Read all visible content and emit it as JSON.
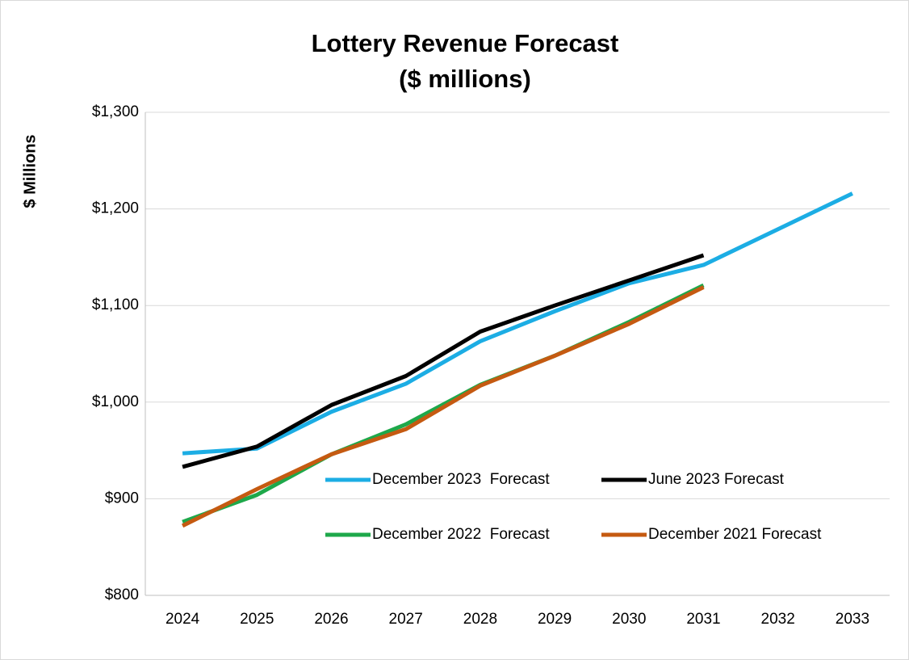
{
  "chart_data": {
    "type": "line",
    "title": "Lottery Revenue Forecast",
    "subtitle": "($ millions)",
    "y_label": "$ Millions",
    "categories": [
      "2024",
      "2025",
      "2026",
      "2027",
      "2028",
      "2029",
      "2030",
      "2031",
      "2032",
      "2033"
    ],
    "series": [
      {
        "name": "December 2023  Forecast",
        "color": "#1cade4",
        "values": [
          947,
          952,
          990,
          1019,
          1063,
          1094,
          1123,
          1142,
          1179,
          1216
        ]
      },
      {
        "name": "June 2023 Forecast",
        "color": "#000000",
        "values": [
          933,
          954,
          997,
          1027,
          1073,
          1100,
          1126,
          1152,
          null,
          null
        ]
      },
      {
        "name": "December 2022  Forecast",
        "color": "#1ea84a",
        "values": [
          876,
          904,
          946,
          977,
          1018,
          1048,
          1083,
          1121,
          null,
          null
        ]
      },
      {
        "name": "December 2021 Forecast",
        "color": "#c55a11",
        "values": [
          872,
          910,
          946,
          972,
          1017,
          1048,
          1081,
          1119,
          null,
          null
        ]
      }
    ],
    "ylim": [
      800,
      1300
    ],
    "yticks": [
      {
        "value": 800,
        "label": "$800"
      },
      {
        "value": 900,
        "label": "$900"
      },
      {
        "value": 1000,
        "label": "$1,000"
      },
      {
        "value": 1100,
        "label": "$1,100"
      },
      {
        "value": 1200,
        "label": "$1,200"
      },
      {
        "value": 1300,
        "label": "$1,300"
      }
    ],
    "grid": true,
    "legend_columns": 2
  }
}
